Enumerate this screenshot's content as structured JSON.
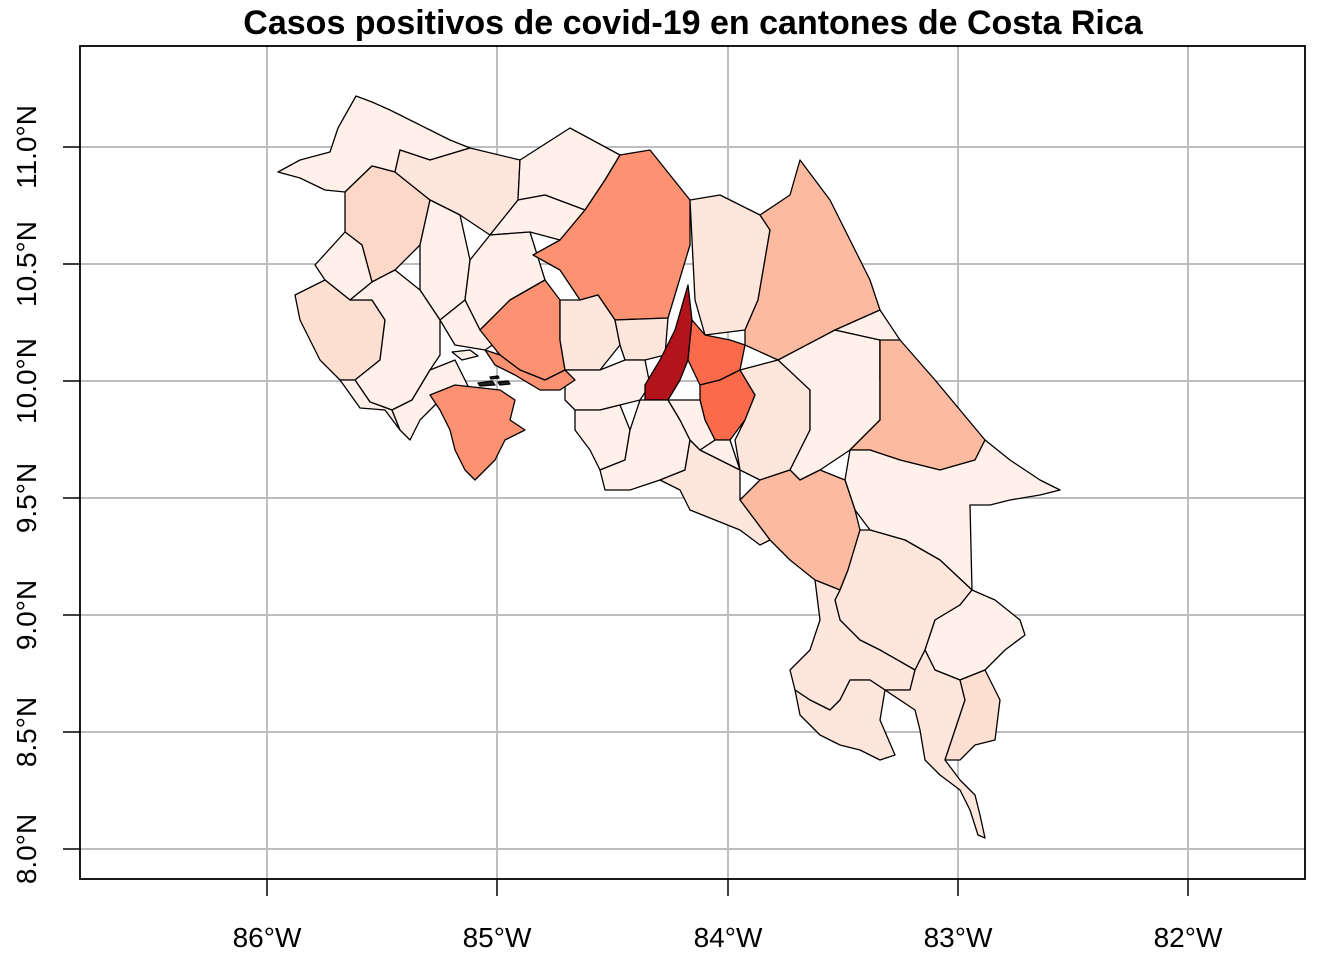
{
  "chart_data": {
    "type": "choropleth",
    "title": "Casos positivos de covid-19 en cantones de Costa Rica",
    "x_ticks": [
      {
        "value": -86,
        "label": "86°W"
      },
      {
        "value": -85,
        "label": "85°W"
      },
      {
        "value": -84,
        "label": "84°W"
      },
      {
        "value": -83,
        "label": "83°W"
      },
      {
        "value": -82,
        "label": "82°W"
      }
    ],
    "y_ticks": [
      {
        "value": 8.0,
        "label": "8.0°N"
      },
      {
        "value": 8.5,
        "label": "8.5°N"
      },
      {
        "value": 9.0,
        "label": "9.0°N"
      },
      {
        "value": 9.5,
        "label": "9.5°N"
      },
      {
        "value": 10.0,
        "label": "10.0°N"
      },
      {
        "value": 10.5,
        "label": "10.5°N"
      },
      {
        "value": 11.0,
        "label": "11.0°N"
      }
    ],
    "xlim": [
      -86.8,
      -81.5
    ],
    "ylim": [
      7.86,
      11.44
    ],
    "grid": true,
    "color_scale": [
      "#fff0e9",
      "#fee0d2",
      "#fcbba1",
      "#fc9272",
      "#fb6a4a",
      "#ef3b2c",
      "#cb181d",
      "#a50f15"
    ]
  }
}
